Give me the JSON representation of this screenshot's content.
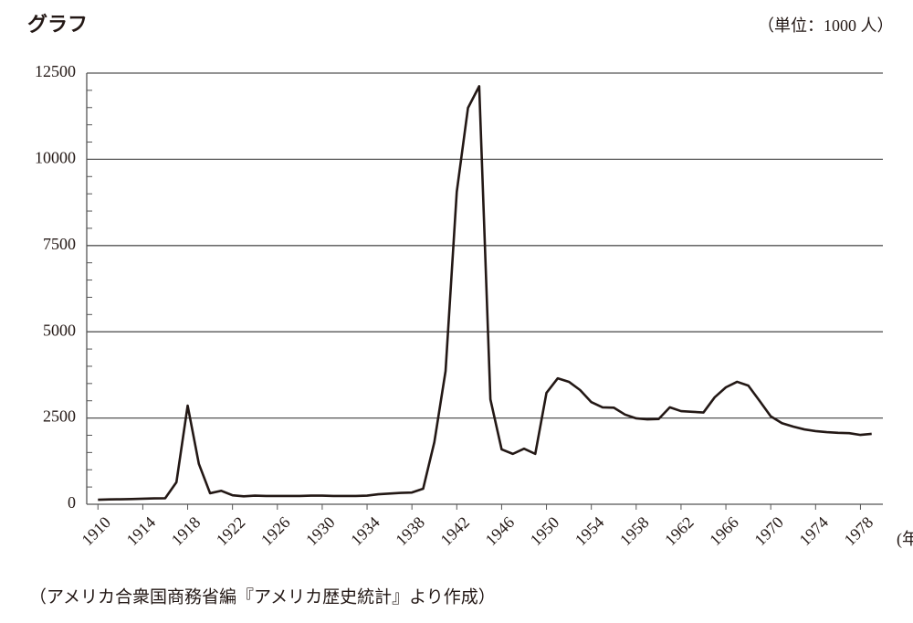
{
  "chart_data": {
    "type": "line",
    "title": "グラフ",
    "unit_label": "（単位：1000 人）",
    "x_unit_label": "(年)",
    "source": "（アメリカ合衆国商務省編『アメリカ歴史統計』より作成）",
    "x": [
      1910,
      1911,
      1912,
      1913,
      1914,
      1915,
      1916,
      1917,
      1918,
      1919,
      1920,
      1921,
      1922,
      1923,
      1924,
      1925,
      1926,
      1927,
      1928,
      1929,
      1930,
      1931,
      1932,
      1933,
      1934,
      1935,
      1936,
      1937,
      1938,
      1939,
      1940,
      1941,
      1942,
      1943,
      1944,
      1945,
      1946,
      1947,
      1948,
      1949,
      1950,
      1951,
      1952,
      1953,
      1954,
      1955,
      1956,
      1957,
      1958,
      1959,
      1960,
      1961,
      1962,
      1963,
      1964,
      1965,
      1966,
      1967,
      1968,
      1969,
      1970,
      1971,
      1972,
      1973,
      1974,
      1975,
      1976,
      1977,
      1978,
      1979
    ],
    "series": [
      {
        "color": "#231815",
        "values": [
          130,
          140,
          145,
          150,
          160,
          170,
          175,
          640,
          2860,
          1170,
          320,
          390,
          260,
          230,
          250,
          240,
          240,
          240,
          240,
          250,
          250,
          240,
          240,
          240,
          250,
          290,
          310,
          330,
          340,
          450,
          1800,
          3860,
          9060,
          11490,
          12120,
          3040,
          1590,
          1460,
          1610,
          1460,
          3230,
          3650,
          3550,
          3310,
          2960,
          2810,
          2800,
          2600,
          2490,
          2460,
          2470,
          2810,
          2700,
          2680,
          2660,
          3100,
          3390,
          3550,
          3440,
          3000,
          2550,
          2350,
          2250,
          2170,
          2120,
          2090,
          2070,
          2060,
          2010,
          2040
        ]
      }
    ],
    "xlim": [
      1909,
      1980
    ],
    "xticks": [
      1910,
      1914,
      1918,
      1922,
      1926,
      1930,
      1934,
      1938,
      1942,
      1946,
      1950,
      1954,
      1958,
      1962,
      1966,
      1970,
      1974,
      1978
    ],
    "ylim": [
      0,
      12500
    ],
    "yticks": [
      0,
      2500,
      5000,
      7500,
      10000,
      12500
    ],
    "yminorticks": [
      500,
      1000,
      1500,
      2000,
      3000,
      3500,
      4000,
      4500,
      5500,
      6000,
      6500,
      7000,
      8000,
      8500,
      9000,
      9500,
      10500,
      11000,
      11500,
      12000
    ],
    "grid": true
  }
}
